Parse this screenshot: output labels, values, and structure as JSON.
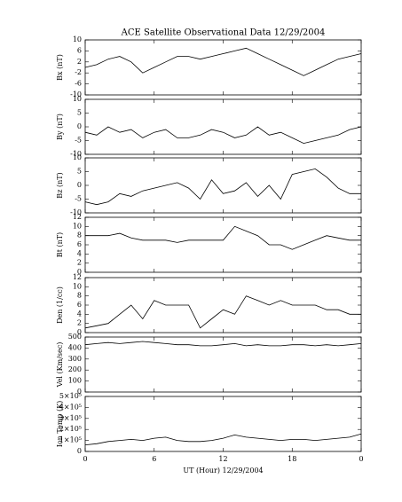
{
  "chart_data": [
    {
      "type": "line",
      "title": "ACE Satellite Observational Data   12/29/2004",
      "ylabel": "Bx (nT)",
      "x": [
        0,
        1,
        2,
        3,
        4,
        5,
        6,
        7,
        8,
        9,
        10,
        11,
        12,
        13,
        14,
        15,
        16,
        17,
        18,
        19,
        20,
        21,
        22,
        23,
        24
      ],
      "values": [
        0,
        1,
        3,
        4,
        2,
        -2,
        0,
        2,
        4,
        4,
        3,
        4,
        5,
        6,
        7,
        5,
        3,
        1,
        -1,
        -3,
        -1,
        1,
        3,
        4,
        5
      ],
      "xlim": [
        0,
        24
      ],
      "ylim": [
        -10,
        10
      ],
      "yticks": [
        -10,
        -6,
        -2,
        2,
        6,
        10
      ]
    },
    {
      "type": "line",
      "ylabel": "By (nT)",
      "x": [
        0,
        1,
        2,
        3,
        4,
        5,
        6,
        7,
        8,
        9,
        10,
        11,
        12,
        13,
        14,
        15,
        16,
        17,
        18,
        19,
        20,
        21,
        22,
        23,
        24
      ],
      "values": [
        -2,
        -3,
        0,
        -2,
        -1,
        -4,
        -2,
        -1,
        -4,
        -4,
        -3,
        -1,
        -2,
        -4,
        -3,
        0,
        -3,
        -2,
        -4,
        -6,
        -5,
        -4,
        -3,
        -1,
        0
      ],
      "xlim": [
        0,
        24
      ],
      "ylim": [
        -10,
        10
      ],
      "yticks": [
        -10,
        -5,
        0,
        5,
        10
      ]
    },
    {
      "type": "line",
      "ylabel": "Bz (nT)",
      "x": [
        0,
        1,
        2,
        3,
        4,
        5,
        6,
        7,
        8,
        9,
        10,
        11,
        12,
        13,
        14,
        15,
        16,
        17,
        18,
        19,
        20,
        21,
        22,
        23,
        24
      ],
      "values": [
        -6,
        -7,
        -6,
        -3,
        -4,
        -2,
        -1,
        0,
        1,
        -1,
        -5,
        2,
        -3,
        -2,
        1,
        -4,
        0,
        -5,
        4,
        5,
        6,
        3,
        -1,
        -3,
        -3
      ],
      "xlim": [
        0,
        24
      ],
      "ylim": [
        -10,
        10
      ],
      "yticks": [
        -10,
        -5,
        0,
        5,
        10
      ]
    },
    {
      "type": "line",
      "ylabel": "Bt (nT)",
      "x": [
        0,
        1,
        2,
        3,
        4,
        5,
        6,
        7,
        8,
        9,
        10,
        11,
        12,
        13,
        14,
        15,
        16,
        17,
        18,
        19,
        20,
        21,
        22,
        23,
        24
      ],
      "values": [
        8,
        8,
        8,
        8.5,
        7.5,
        7,
        7,
        7,
        6.5,
        7,
        7,
        7,
        7,
        10,
        9,
        8,
        6,
        6,
        5,
        6,
        7,
        8,
        7.5,
        7,
        7
      ],
      "xlim": [
        0,
        24
      ],
      "ylim": [
        0,
        12
      ],
      "yticks": [
        0,
        2,
        4,
        6,
        8,
        10,
        12
      ]
    },
    {
      "type": "line",
      "ylabel": "Den (1/cc)",
      "x": [
        0,
        1,
        2,
        3,
        4,
        5,
        6,
        7,
        8,
        9,
        10,
        11,
        12,
        13,
        14,
        15,
        16,
        17,
        18,
        19,
        20,
        21,
        22,
        23,
        24
      ],
      "values": [
        1,
        1.5,
        2,
        4,
        6,
        3,
        7,
        6,
        6,
        6,
        1,
        3,
        5,
        4,
        8,
        7,
        6,
        7,
        6,
        6,
        6,
        5,
        5,
        4,
        4
      ],
      "xlim": [
        0,
        24
      ],
      "ylim": [
        0,
        12
      ],
      "yticks": [
        0,
        2,
        4,
        6,
        8,
        10,
        12
      ]
    },
    {
      "type": "line",
      "ylabel": "Vel (Km/sec)",
      "x": [
        0,
        1,
        2,
        3,
        4,
        5,
        6,
        7,
        8,
        9,
        10,
        11,
        12,
        13,
        14,
        15,
        16,
        17,
        18,
        19,
        20,
        21,
        22,
        23,
        24
      ],
      "values": [
        430,
        440,
        450,
        440,
        450,
        460,
        450,
        440,
        430,
        430,
        420,
        420,
        430,
        440,
        420,
        430,
        420,
        420,
        430,
        430,
        420,
        430,
        420,
        430,
        440
      ],
      "xlim": [
        0,
        24
      ],
      "ylim": [
        0,
        500
      ],
      "yticks": [
        0,
        100,
        200,
        300,
        400,
        500
      ]
    },
    {
      "type": "line",
      "ylabel": "Ion Temp (K)",
      "xlabel": "UT (Hour)   12/29/2004",
      "x": [
        0,
        1,
        2,
        3,
        4,
        5,
        6,
        7,
        8,
        9,
        10,
        11,
        12,
        13,
        14,
        15,
        16,
        17,
        18,
        19,
        20,
        21,
        22,
        23,
        24
      ],
      "values": [
        60000,
        70000,
        90000,
        100000,
        110000,
        100000,
        120000,
        130000,
        100000,
        90000,
        90000,
        100000,
        120000,
        150000,
        130000,
        120000,
        110000,
        100000,
        110000,
        110000,
        100000,
        110000,
        120000,
        130000,
        160000
      ],
      "xlim": [
        0,
        24
      ],
      "ylim": [
        0,
        500000
      ],
      "yticks": [
        0,
        {
          "value": 100000,
          "label": "1×10⁵"
        },
        {
          "value": 200000,
          "label": "2×10⁵"
        },
        {
          "value": 300000,
          "label": "3×10⁵"
        },
        {
          "value": 400000,
          "label": "4×10⁵"
        },
        {
          "value": 500000,
          "label": "5×10⁵"
        }
      ],
      "xticks": [
        0,
        6,
        12,
        18,
        {
          "value": 24,
          "label": "0"
        }
      ]
    }
  ]
}
